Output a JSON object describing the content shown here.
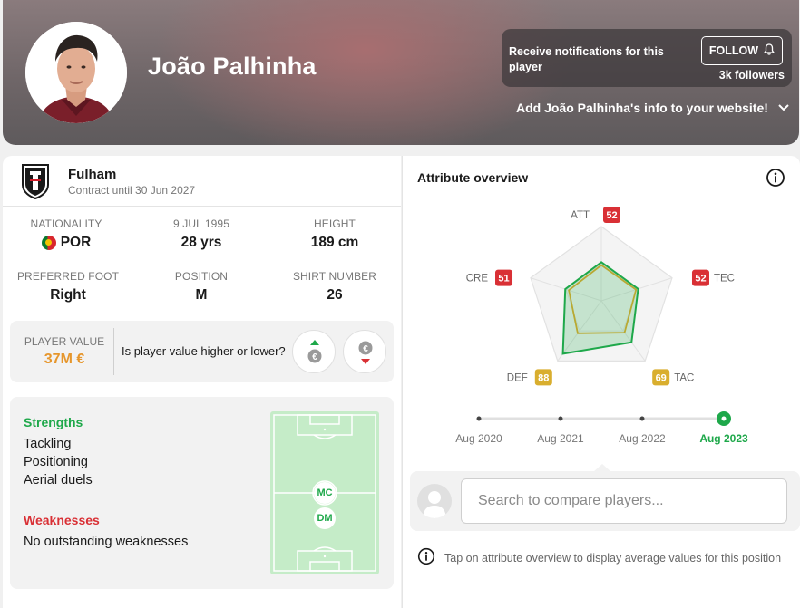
{
  "header": {
    "player_name": "João Palhinha",
    "notify_text": "Receive notifications for this player",
    "follow_label": "FOLLOW",
    "followers": "3k followers",
    "add_info": "Add João Palhinha's info to your website!"
  },
  "club": {
    "name": "Fulham",
    "contract": "Contract until 30 Jun 2027"
  },
  "info": {
    "nationality_label": "NATIONALITY",
    "nationality_value": "POR",
    "dob_label": "9 JUL 1995",
    "age_value": "28 yrs",
    "height_label": "HEIGHT",
    "height_value": "189 cm",
    "foot_label": "PREFERRED FOOT",
    "foot_value": "Right",
    "position_label": "POSITION",
    "position_value": "M",
    "shirt_label": "SHIRT NUMBER",
    "shirt_value": "26"
  },
  "player_value": {
    "label": "PLAYER VALUE",
    "value": "37M €",
    "question": "Is player value higher or lower?"
  },
  "strengths": {
    "title": "Strengths",
    "items": [
      "Tackling",
      "Positioning",
      "Aerial duels"
    ],
    "weak_title": "Weaknesses",
    "weak_items": [
      "No outstanding weaknesses"
    ],
    "positions": [
      "MC",
      "DM"
    ]
  },
  "attributes": {
    "title": "Attribute overview",
    "axes": [
      {
        "label": "ATT",
        "value": 52,
        "color": "#d93035"
      },
      {
        "label": "TEC",
        "value": 52,
        "color": "#d93035"
      },
      {
        "label": "TAC",
        "value": 69,
        "color": "#d9ae2e"
      },
      {
        "label": "DEF",
        "value": 88,
        "color": "#d9ae2e"
      },
      {
        "label": "CRE",
        "value": 51,
        "color": "#d93035"
      }
    ],
    "average_values": [
      48,
      49,
      53,
      54,
      46
    ],
    "timeline": [
      "Aug 2020",
      "Aug 2021",
      "Aug 2022",
      "Aug 2023"
    ],
    "timeline_selected": 3,
    "series_color": "#1ea84a",
    "average_color": "#e3a92c"
  },
  "compare": {
    "placeholder": "Search to compare players..."
  },
  "tip": "Tap on attribute overview to display average values for this position"
}
